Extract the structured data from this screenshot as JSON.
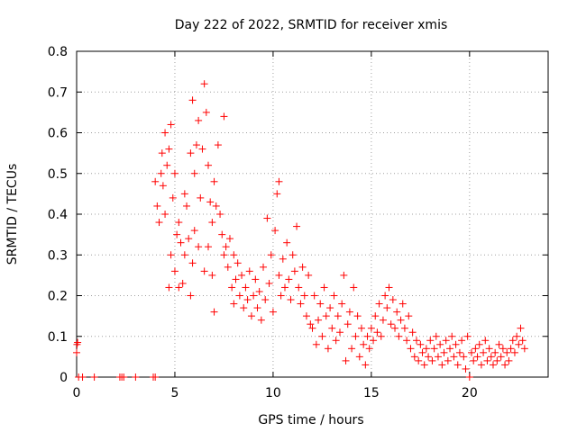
{
  "chart_data": {
    "type": "scatter",
    "title": "Day 222 of 2022, SRMTID for receiver xmis",
    "xlabel": "GPS time / hours",
    "ylabel": "SRMTID / TECUs",
    "xlim": [
      0,
      24
    ],
    "ylim": [
      0,
      0.8
    ],
    "grid": true,
    "marker": "+",
    "series_color": "#ff0000",
    "x_ticks": [
      0,
      5,
      10,
      15,
      20
    ],
    "x_tick_labels": [
      "0",
      "5",
      "10",
      "15",
      "20"
    ],
    "y_ticks": [
      0,
      0.1,
      0.2,
      0.3,
      0.4,
      0.5,
      0.6,
      0.7,
      0.8
    ],
    "y_tick_labels": [
      "0",
      "0.1",
      "0.2",
      "0.3",
      "0.4",
      "0.5",
      "0.6",
      "0.7",
      "0.8"
    ],
    "series": [
      {
        "name": "SRMTID",
        "points": [
          [
            0.0,
            0.06
          ],
          [
            0.02,
            0.08
          ],
          [
            0.05,
            0.085
          ],
          [
            0.1,
            0.0
          ],
          [
            0.3,
            0.0
          ],
          [
            0.9,
            0.0
          ],
          [
            2.2,
            0.0
          ],
          [
            2.3,
            0.0
          ],
          [
            2.4,
            0.0
          ],
          [
            3.0,
            0.0
          ],
          [
            3.9,
            0.0
          ],
          [
            4.0,
            0.0
          ],
          [
            4.0,
            0.48
          ],
          [
            4.1,
            0.42
          ],
          [
            4.2,
            0.38
          ],
          [
            4.3,
            0.5
          ],
          [
            4.35,
            0.55
          ],
          [
            4.4,
            0.47
          ],
          [
            4.5,
            0.4
          ],
          [
            4.5,
            0.6
          ],
          [
            4.6,
            0.52
          ],
          [
            4.7,
            0.56
          ],
          [
            4.7,
            0.22
          ],
          [
            4.8,
            0.62
          ],
          [
            4.8,
            0.3
          ],
          [
            4.9,
            0.44
          ],
          [
            5.0,
            0.5
          ],
          [
            5.0,
            0.26
          ],
          [
            5.1,
            0.35
          ],
          [
            5.2,
            0.38
          ],
          [
            5.2,
            0.22
          ],
          [
            5.3,
            0.33
          ],
          [
            5.4,
            0.23
          ],
          [
            5.5,
            0.3
          ],
          [
            5.5,
            0.45
          ],
          [
            5.6,
            0.42
          ],
          [
            5.7,
            0.34
          ],
          [
            5.8,
            0.55
          ],
          [
            5.8,
            0.2
          ],
          [
            5.9,
            0.68
          ],
          [
            5.9,
            0.28
          ],
          [
            6.0,
            0.5
          ],
          [
            6.0,
            0.36
          ],
          [
            6.1,
            0.57
          ],
          [
            6.2,
            0.32
          ],
          [
            6.2,
            0.63
          ],
          [
            6.3,
            0.44
          ],
          [
            6.4,
            0.56
          ],
          [
            6.5,
            0.72
          ],
          [
            6.5,
            0.26
          ],
          [
            6.6,
            0.65
          ],
          [
            6.7,
            0.52
          ],
          [
            6.7,
            0.32
          ],
          [
            6.8,
            0.43
          ],
          [
            6.9,
            0.38
          ],
          [
            6.9,
            0.25
          ],
          [
            7.0,
            0.48
          ],
          [
            7.0,
            0.16
          ],
          [
            7.1,
            0.42
          ],
          [
            7.2,
            0.57
          ],
          [
            7.3,
            0.4
          ],
          [
            7.4,
            0.35
          ],
          [
            7.5,
            0.64
          ],
          [
            7.5,
            0.3
          ],
          [
            7.6,
            0.32
          ],
          [
            7.7,
            0.27
          ],
          [
            7.8,
            0.34
          ],
          [
            7.9,
            0.22
          ],
          [
            8.0,
            0.3
          ],
          [
            8.0,
            0.18
          ],
          [
            8.1,
            0.24
          ],
          [
            8.2,
            0.28
          ],
          [
            8.3,
            0.2
          ],
          [
            8.4,
            0.25
          ],
          [
            8.5,
            0.17
          ],
          [
            8.6,
            0.22
          ],
          [
            8.7,
            0.19
          ],
          [
            8.8,
            0.26
          ],
          [
            8.9,
            0.15
          ],
          [
            9.0,
            0.2
          ],
          [
            9.1,
            0.24
          ],
          [
            9.2,
            0.17
          ],
          [
            9.3,
            0.21
          ],
          [
            9.4,
            0.14
          ],
          [
            9.5,
            0.27
          ],
          [
            9.6,
            0.19
          ],
          [
            9.7,
            0.39
          ],
          [
            9.8,
            0.23
          ],
          [
            9.9,
            0.3
          ],
          [
            10.0,
            0.16
          ],
          [
            10.1,
            0.36
          ],
          [
            10.2,
            0.45
          ],
          [
            10.3,
            0.48
          ],
          [
            10.3,
            0.25
          ],
          [
            10.4,
            0.2
          ],
          [
            10.5,
            0.29
          ],
          [
            10.6,
            0.22
          ],
          [
            10.7,
            0.33
          ],
          [
            10.8,
            0.24
          ],
          [
            10.9,
            0.19
          ],
          [
            11.0,
            0.3
          ],
          [
            11.1,
            0.26
          ],
          [
            11.2,
            0.37
          ],
          [
            11.3,
            0.22
          ],
          [
            11.4,
            0.18
          ],
          [
            11.5,
            0.27
          ],
          [
            11.6,
            0.2
          ],
          [
            11.7,
            0.15
          ],
          [
            11.8,
            0.25
          ],
          [
            11.9,
            0.13
          ],
          [
            12.0,
            0.12
          ],
          [
            12.1,
            0.2
          ],
          [
            12.2,
            0.08
          ],
          [
            12.3,
            0.14
          ],
          [
            12.4,
            0.18
          ],
          [
            12.5,
            0.1
          ],
          [
            12.6,
            0.22
          ],
          [
            12.7,
            0.15
          ],
          [
            12.8,
            0.07
          ],
          [
            12.9,
            0.17
          ],
          [
            13.0,
            0.12
          ],
          [
            13.1,
            0.2
          ],
          [
            13.2,
            0.09
          ],
          [
            13.3,
            0.15
          ],
          [
            13.4,
            0.11
          ],
          [
            13.5,
            0.18
          ],
          [
            13.6,
            0.25
          ],
          [
            13.7,
            0.04
          ],
          [
            13.8,
            0.13
          ],
          [
            13.9,
            0.16
          ],
          [
            14.0,
            0.07
          ],
          [
            14.1,
            0.22
          ],
          [
            14.2,
            0.1
          ],
          [
            14.3,
            0.15
          ],
          [
            14.4,
            0.05
          ],
          [
            14.5,
            0.12
          ],
          [
            14.6,
            0.08
          ],
          [
            14.7,
            0.03
          ],
          [
            14.8,
            0.1
          ],
          [
            14.9,
            0.07
          ],
          [
            15.0,
            0.12
          ],
          [
            15.1,
            0.09
          ],
          [
            15.2,
            0.15
          ],
          [
            15.3,
            0.11
          ],
          [
            15.4,
            0.18
          ],
          [
            15.5,
            0.1
          ],
          [
            15.6,
            0.14
          ],
          [
            15.7,
            0.2
          ],
          [
            15.8,
            0.17
          ],
          [
            15.9,
            0.22
          ],
          [
            16.0,
            0.13
          ],
          [
            16.1,
            0.19
          ],
          [
            16.2,
            0.12
          ],
          [
            16.3,
            0.16
          ],
          [
            16.4,
            0.1
          ],
          [
            16.5,
            0.14
          ],
          [
            16.6,
            0.18
          ],
          [
            16.7,
            0.12
          ],
          [
            16.8,
            0.09
          ],
          [
            16.9,
            0.15
          ],
          [
            17.0,
            0.07
          ],
          [
            17.1,
            0.11
          ],
          [
            17.2,
            0.05
          ],
          [
            17.3,
            0.09
          ],
          [
            17.4,
            0.04
          ],
          [
            17.5,
            0.08
          ],
          [
            17.6,
            0.06
          ],
          [
            17.7,
            0.03
          ],
          [
            17.8,
            0.07
          ],
          [
            17.9,
            0.05
          ],
          [
            18.0,
            0.09
          ],
          [
            18.1,
            0.04
          ],
          [
            18.2,
            0.07
          ],
          [
            18.3,
            0.1
          ],
          [
            18.4,
            0.05
          ],
          [
            18.5,
            0.08
          ],
          [
            18.6,
            0.03
          ],
          [
            18.7,
            0.06
          ],
          [
            18.8,
            0.09
          ],
          [
            18.9,
            0.04
          ],
          [
            19.0,
            0.07
          ],
          [
            19.1,
            0.1
          ],
          [
            19.2,
            0.05
          ],
          [
            19.3,
            0.08
          ],
          [
            19.4,
            0.03
          ],
          [
            19.5,
            0.06
          ],
          [
            19.6,
            0.09
          ],
          [
            19.7,
            0.05
          ],
          [
            19.8,
            0.02
          ],
          [
            19.9,
            0.1
          ],
          [
            20.0,
            0.0
          ],
          [
            20.1,
            0.06
          ],
          [
            20.2,
            0.04
          ],
          [
            20.3,
            0.07
          ],
          [
            20.4,
            0.05
          ],
          [
            20.5,
            0.08
          ],
          [
            20.6,
            0.03
          ],
          [
            20.7,
            0.06
          ],
          [
            20.8,
            0.09
          ],
          [
            20.9,
            0.04
          ],
          [
            21.0,
            0.07
          ],
          [
            21.1,
            0.05
          ],
          [
            21.2,
            0.03
          ],
          [
            21.3,
            0.06
          ],
          [
            21.4,
            0.04
          ],
          [
            21.5,
            0.08
          ],
          [
            21.6,
            0.05
          ],
          [
            21.7,
            0.07
          ],
          [
            21.8,
            0.03
          ],
          [
            21.9,
            0.06
          ],
          [
            22.0,
            0.04
          ],
          [
            22.1,
            0.07
          ],
          [
            22.2,
            0.09
          ],
          [
            22.3,
            0.06
          ],
          [
            22.4,
            0.1
          ],
          [
            22.5,
            0.08
          ],
          [
            22.6,
            0.12
          ],
          [
            22.7,
            0.09
          ],
          [
            22.8,
            0.07
          ]
        ]
      }
    ]
  }
}
